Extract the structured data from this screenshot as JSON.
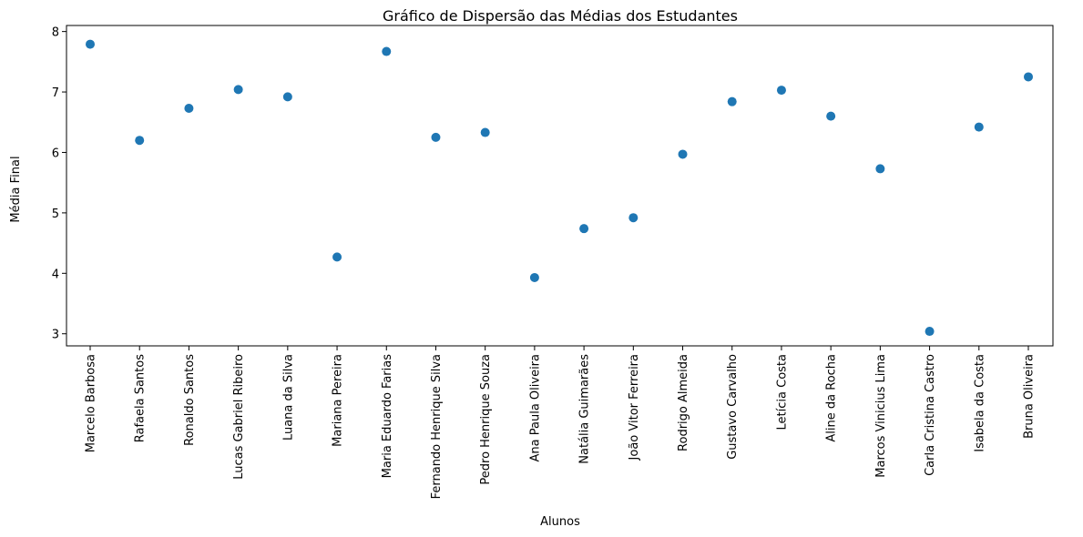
{
  "chart_data": {
    "type": "scatter",
    "title": "Gráfico de Dispersão das Médias dos Estudantes",
    "xlabel": "Alunos",
    "ylabel": "Média Final",
    "ylim": [
      2.8,
      8.1
    ],
    "yticks": [
      3,
      4,
      5,
      6,
      7,
      8
    ],
    "grid": false,
    "point_color": "#1f77b4",
    "categories": [
      "Marcelo Barbosa",
      "Rafaela Santos",
      "Ronaldo Santos",
      "Lucas Gabriel Ribeiro",
      "Luana da Silva",
      "Mariana Pereira",
      "Maria Eduardo Farias",
      "Fernando Henrique Silva",
      "Pedro Henrique Souza",
      "Ana Paula Oliveira",
      "Natália Guimarães",
      "João Vitor Ferreira",
      "Rodrigo Almeida",
      "Gustavo Carvalho",
      "Letícia Costa",
      "Aline da Rocha",
      "Marcos Vinicius Lima",
      "Carla Cristina Castro",
      "Isabela da Costa",
      "Bruna Oliveira"
    ],
    "values": [
      7.79,
      6.2,
      6.73,
      7.04,
      6.92,
      4.27,
      7.67,
      6.25,
      6.33,
      3.93,
      4.74,
      4.92,
      5.97,
      6.84,
      7.03,
      6.6,
      5.73,
      3.04,
      6.42,
      7.25
    ]
  }
}
